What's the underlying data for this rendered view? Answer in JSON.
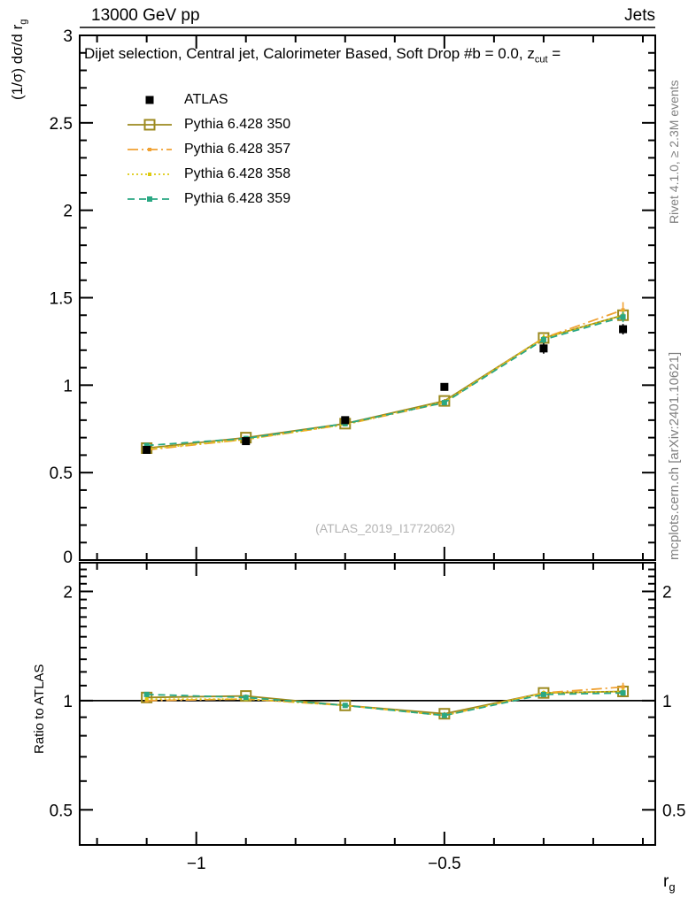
{
  "header": {
    "left": "13000 GeV pp",
    "right": "Jets"
  },
  "side_notes": {
    "right_top": "Rivet 4.1.0, ≥ 2.3M events",
    "right_bottom": "mcplots.cern.ch [arXiv:2401.10621]"
  },
  "watermark": "(ATLAS_2019_I1772062)",
  "chart_data": [
    {
      "type": "line",
      "panel": "main",
      "title_pre": "Dijet selection, Central jet, Calorimeter Based, Soft Drop #b = 0.0, z",
      "title_sub": "cut",
      "title_tail": " = ",
      "ylabel_pre": "(1/σ) dσ/d r",
      "ylabel_sub": "g",
      "xlim": [
        -1.235,
        -0.075
      ],
      "ylim": [
        0,
        3
      ],
      "xticks": [
        -1,
        -0.5
      ],
      "xtick_labels": [
        "−1",
        "−0.5"
      ],
      "yticks": [
        0,
        0.5,
        1,
        1.5,
        2,
        2.5,
        3
      ],
      "ytick_labels": [
        "0",
        "0.5",
        "1",
        "1.5",
        "2",
        "2.5",
        "3"
      ],
      "grid": false,
      "legend_position": "top-left-inside",
      "x": [
        -1.1,
        -0.9,
        -0.7,
        -0.5,
        -0.3,
        -0.14
      ],
      "series": [
        {
          "name": "ATLAS",
          "color": "#000000",
          "line": "none",
          "marker": "square-filled",
          "marker_size": 9,
          "values": [
            0.63,
            0.68,
            0.8,
            0.99,
            1.21,
            1.32
          ],
          "errors": [
            0.02,
            0.02,
            0.02,
            0.02,
            0.03,
            0.03
          ]
        },
        {
          "name": "Pythia 6.428 350",
          "color": "#9c8a1f",
          "line": "solid",
          "marker": "square-open",
          "marker_size": 11,
          "values": [
            0.64,
            0.7,
            0.78,
            0.91,
            1.27,
            1.4
          ],
          "errors": [
            0.01,
            0.01,
            0.01,
            0.01,
            0.02,
            0.03
          ]
        },
        {
          "name": "Pythia 6.428 357",
          "color": "#f0a132",
          "line": "dash-dot",
          "marker": "square-small",
          "marker_size": 4,
          "values": [
            0.63,
            0.69,
            0.775,
            0.9,
            1.27,
            1.43
          ],
          "errors": [
            0.01,
            0.01,
            0.01,
            0.01,
            0.02,
            0.045
          ]
        },
        {
          "name": "Pythia 6.428 358",
          "color": "#ddca10",
          "line": "dotted",
          "marker": "square-small",
          "marker_size": 4,
          "values": [
            0.635,
            0.69,
            0.775,
            0.905,
            1.27,
            1.4
          ],
          "errors": [
            0.01,
            0.01,
            0.01,
            0.01,
            0.02,
            0.03
          ]
        },
        {
          "name": "Pythia 6.428 359",
          "color": "#2aa883",
          "line": "dashed",
          "marker": "square-filled",
          "marker_size": 6,
          "values": [
            0.655,
            0.695,
            0.78,
            0.9,
            1.26,
            1.39
          ],
          "errors": [
            0.01,
            0.01,
            0.01,
            0.01,
            0.02,
            0.03
          ]
        }
      ]
    },
    {
      "type": "line",
      "panel": "ratio",
      "ylabel": "Ratio to ATLAS",
      "xlabel_pre": "r",
      "xlabel_sub": "g",
      "yscale": "log",
      "xlim": [
        -1.235,
        -0.075
      ],
      "ylim": [
        0.4,
        2.4
      ],
      "ref_line": 1,
      "xticks": [
        -1,
        -0.5
      ],
      "xtick_labels": [
        "−1",
        "−0.5"
      ],
      "yticks": [
        0.5,
        1,
        2
      ],
      "ytick_labels": [
        "0.5",
        "1",
        "2"
      ],
      "grid": false,
      "x": [
        -1.1,
        -0.9,
        -0.7,
        -0.5,
        -0.3,
        -0.14
      ],
      "series": [
        {
          "name": "Pythia 6.428 350",
          "color": "#9c8a1f",
          "line": "solid",
          "marker": "square-open",
          "marker_size": 11,
          "values": [
            1.02,
            1.03,
            0.97,
            0.92,
            1.05,
            1.06
          ],
          "errors": [
            0.01,
            0.01,
            0.01,
            0.01,
            0.015,
            0.02
          ]
        },
        {
          "name": "Pythia 6.428 357",
          "color": "#f0a132",
          "line": "dash-dot",
          "marker": "square-small",
          "marker_size": 4,
          "values": [
            1.0,
            1.01,
            0.97,
            0.91,
            1.05,
            1.09
          ],
          "errors": [
            0.01,
            0.01,
            0.01,
            0.01,
            0.015,
            0.03
          ]
        },
        {
          "name": "Pythia 6.428 358",
          "color": "#ddca10",
          "line": "dotted",
          "marker": "square-small",
          "marker_size": 4,
          "values": [
            1.01,
            1.01,
            0.97,
            0.91,
            1.05,
            1.06
          ],
          "errors": [
            0.01,
            0.01,
            0.01,
            0.01,
            0.015,
            0.02
          ]
        },
        {
          "name": "Pythia 6.428 359",
          "color": "#2aa883",
          "line": "dashed",
          "marker": "square-filled",
          "marker_size": 6,
          "values": [
            1.04,
            1.02,
            0.97,
            0.91,
            1.04,
            1.05
          ],
          "errors": [
            0.01,
            0.01,
            0.01,
            0.01,
            0.015,
            0.02
          ]
        }
      ]
    }
  ]
}
